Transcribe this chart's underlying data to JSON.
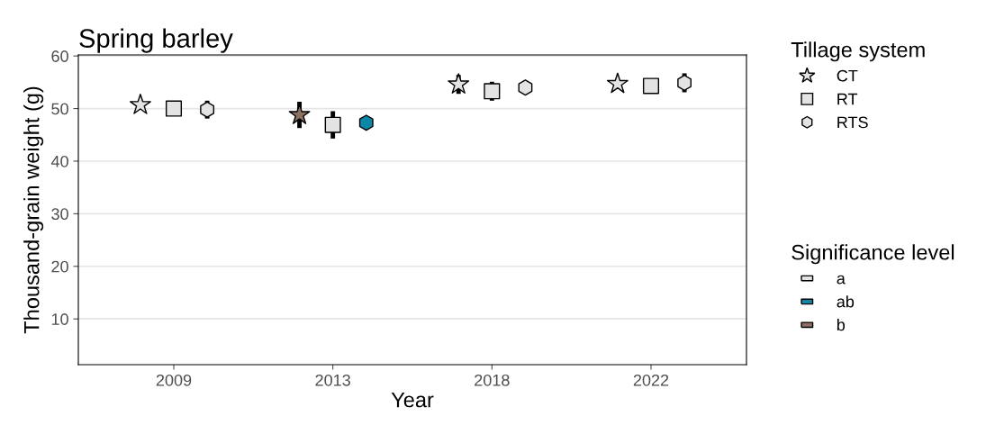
{
  "chart_data": {
    "type": "scatter",
    "title": "Spring barley",
    "xlabel": "Year",
    "ylabel": "Thousand-grain weight (g)",
    "categories": [
      "2009",
      "2013",
      "2018",
      "2022"
    ],
    "ylim": [
      1.3,
      60.2
    ],
    "yticks": [
      10,
      20,
      30,
      40,
      50,
      60
    ],
    "grid": "y",
    "legend": "right",
    "legend_title": "Tillage system",
    "annotations": [
      "Significance level"
    ],
    "series": [
      {
        "name": "CT",
        "marker": "star",
        "color": "#000000",
        "values": [
          50.7,
          48.8,
          54.6,
          54.7
        ],
        "colors": [
          "#e3e3e3",
          "#8c7163",
          "#e3e3e3",
          "#e3e3e3"
        ],
        "errors": [
          null,
          2.5,
          1.8,
          null
        ]
      },
      {
        "name": "RT",
        "marker": "square",
        "color": "#000000",
        "values": [
          50.0,
          46.9,
          53.3,
          54.3
        ],
        "colors": [
          "#e3e3e3",
          "#e3e3e3",
          "#e3e3e3",
          "#e3e3e3"
        ],
        "errors": [
          null,
          2.6,
          1.8,
          null
        ]
      },
      {
        "name": "RTS",
        "color": "#000000",
        "values": [
          49.8,
          47.3,
          54.0,
          54.9
        ],
        "colors": [
          "#e3e3e3",
          "#0e86a6",
          "#e3e3e3",
          "#e3e3e3"
        ],
        "errors": [
          1.7,
          1.0,
          null,
          1.8
        ]
      },
      {
        "name": "a",
        "marker": "square",
        "color": "#e3e3e3",
        "values": [
          null,
          null,
          null,
          null
        ]
      },
      {
        "name": "ab",
        "marker": "square",
        "color": "#0e86a6",
        "values": [
          null,
          null,
          null,
          null
        ]
      },
      {
        "name": "b",
        "marker": "square",
        "color": "#8c7163",
        "values": [
          null,
          null,
          null,
          null
        ]
      }
    ]
  }
}
